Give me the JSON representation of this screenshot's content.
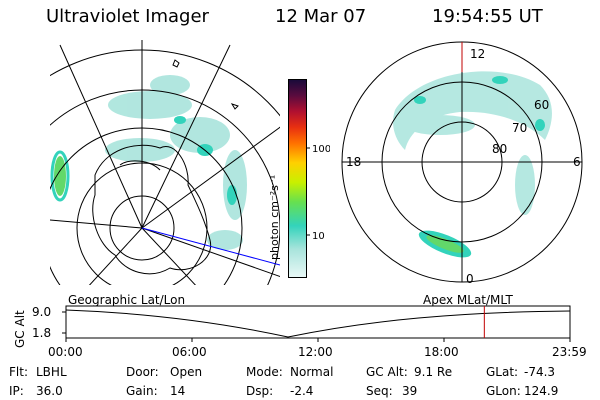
{
  "header": {
    "instrument": "Ultraviolet Imager",
    "date": "12 Mar 07",
    "time": "19:54:55 UT"
  },
  "colorbar": {
    "unit_label": "photon cm⁻²s⁻¹",
    "ticks": [
      "100",
      "10"
    ]
  },
  "polar_plot": {
    "mlt_labels": {
      "top": "12",
      "left": "18",
      "right": "6",
      "bottom": "0"
    },
    "mlat_labels": [
      "60",
      "70",
      "80"
    ]
  },
  "orbit_panel": {
    "left_title": "Geographic Lat/Lon",
    "right_title": "Apex MLat/MLT",
    "axis_label": "GC Alt",
    "y_ticks": [
      "9.0",
      "1.8"
    ],
    "time_ticks": [
      "00:00",
      "06:00",
      "12:00",
      "18:00",
      "23:59"
    ],
    "current_time_fraction": 0.83,
    "marker_color": "#c00000"
  },
  "info": {
    "filter_label": "Flt:",
    "filter_value": "LBHL",
    "ip_label": "IP:",
    "ip_value": "36.0",
    "door_label": "Door:",
    "door_value": "Open",
    "gain_label": "Gain:",
    "gain_value": "14",
    "mode_label": "Mode:",
    "mode_value": "Normal",
    "dsp_label": "Dsp:",
    "dsp_value": "-2.4",
    "gcalt_label": "GC Alt:",
    "gcalt_value": "9.1 Re",
    "seq_label": "Seq:",
    "seq_value": "39",
    "glat_label": "GLat:",
    "glat_value": "-74.3",
    "glon_label": "GLon:",
    "glon_value": "124.9"
  }
}
